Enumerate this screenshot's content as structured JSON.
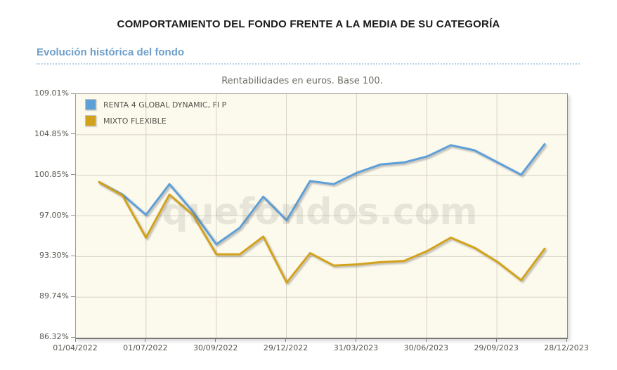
{
  "page": {
    "title": "COMPORTAMIENTO DEL FONDO FRENTE A LA MEDIA DE SU CATEGORÍA",
    "section_heading": "Evolución histórica del fondo"
  },
  "chart_data": {
    "type": "line",
    "title": "Rentabilidades en euros. Base 100.",
    "watermark": "quefondos.com",
    "grid": true,
    "legend_position": "top-left",
    "background": "#fcf9ed",
    "gridline_color": "#d6d3c6",
    "y_axis": {
      "scale": "log",
      "min": 86.32,
      "max": 109.01,
      "tick_values": [
        109.01,
        104.85,
        100.85,
        97.0,
        93.3,
        89.74,
        86.32
      ],
      "tick_labels": [
        "109.01%",
        "104.85%",
        "100.85%",
        "97.00%",
        "93.30%",
        "89.74%",
        "86.32%"
      ]
    },
    "x_axis": {
      "tick_labels": [
        "01/04/2022",
        "01/07/2022",
        "30/09/2022",
        "29/12/2022",
        "31/03/2023",
        "30/06/2023",
        "29/09/2023",
        "28/12/2023"
      ]
    },
    "x": [
      "30/04/2022",
      "31/05/2022",
      "30/06/2022",
      "29/07/2022",
      "31/08/2022",
      "30/09/2022",
      "31/10/2022",
      "30/11/2022",
      "30/12/2022",
      "31/01/2023",
      "28/02/2023",
      "31/03/2023",
      "28/04/2023",
      "31/05/2023",
      "30/06/2023",
      "31/07/2023",
      "31/08/2023",
      "29/09/2023",
      "31/10/2023",
      "30/11/2023"
    ],
    "series": [
      {
        "name": "RENTA 4 GLOBAL DYNAMIC, FI P",
        "color": "#5d9fd7",
        "values": [
          100.2,
          99.0,
          97.1,
          100.0,
          97.4,
          94.4,
          95.9,
          98.8,
          96.6,
          100.3,
          100.0,
          101.1,
          101.9,
          102.1,
          102.7,
          103.8,
          103.3,
          102.1,
          100.9,
          103.9
        ]
      },
      {
        "name": "MIXTO FLEXIBLE",
        "color": "#d2a21c",
        "values": [
          100.2,
          98.9,
          95.0,
          99.0,
          97.1,
          93.5,
          93.5,
          95.1,
          91.0,
          93.6,
          92.5,
          92.6,
          92.8,
          92.9,
          93.8,
          95.0,
          94.1,
          92.8,
          91.2,
          94.0
        ]
      }
    ]
  }
}
